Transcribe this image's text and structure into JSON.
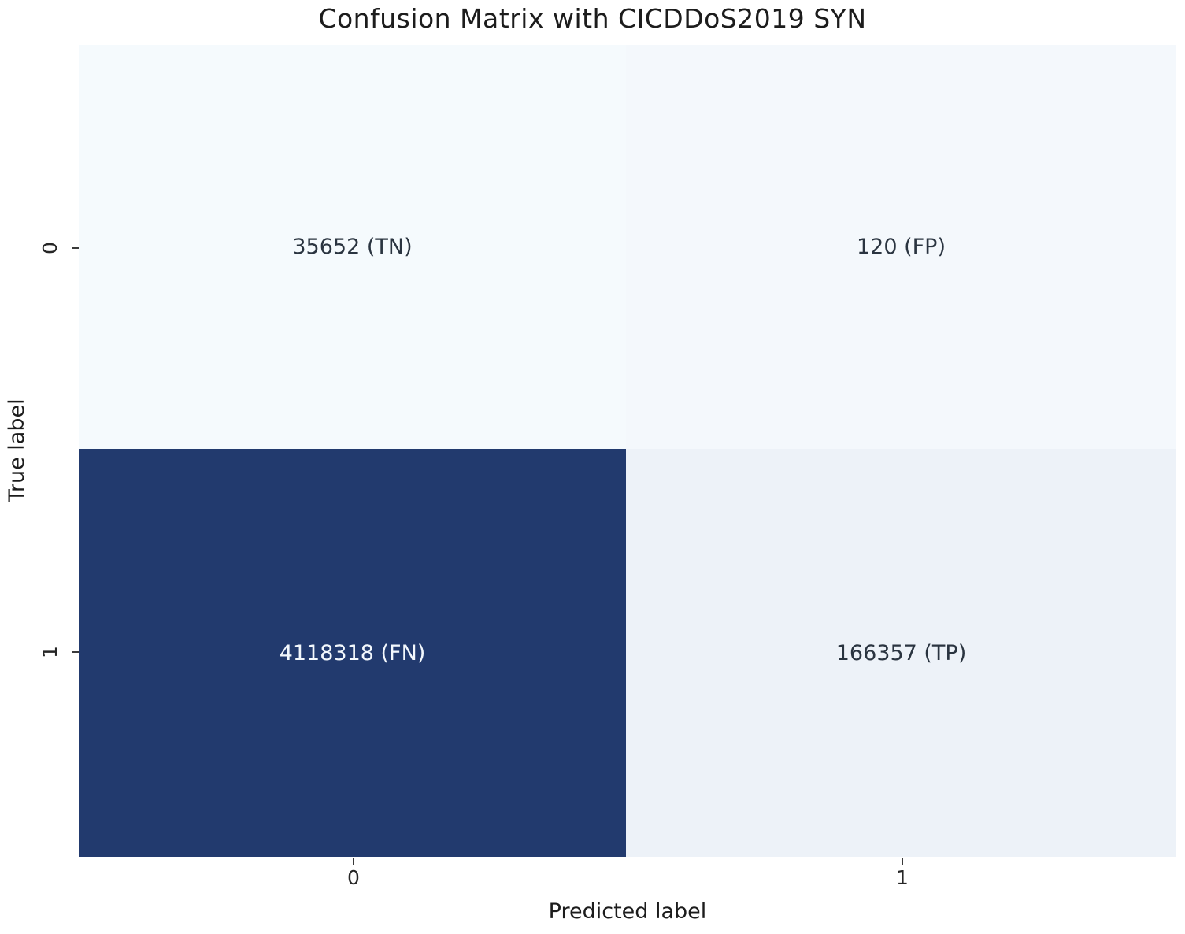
{
  "title": "Confusion Matrix with CICDDoS2019 SYN",
  "chart_data": {
    "type": "heatmap",
    "title": "Confusion Matrix with CICDDoS2019 SYN",
    "xlabel": "Predicted label",
    "ylabel": "True label",
    "x_tick_labels": [
      "0",
      "1"
    ],
    "y_tick_labels": [
      "0",
      "1"
    ],
    "row_categories": [
      "0",
      "1"
    ],
    "col_categories": [
      "0",
      "1"
    ],
    "matrix": [
      [
        35652,
        120
      ],
      [
        4118318,
        166357
      ]
    ],
    "colormap": "Blues",
    "value_min": 0,
    "value_max": 4118318,
    "grid": false,
    "legend_position": "none",
    "cells": [
      {
        "row": "0",
        "col": "0",
        "kind": "TN",
        "value": 35652,
        "label": "35652 (TN)",
        "bg": "#f5fafd",
        "fg": "#2a3440"
      },
      {
        "row": "0",
        "col": "1",
        "kind": "FP",
        "value": 120,
        "label": "120 (FP)",
        "bg": "#f4f8fc",
        "fg": "#2a3440"
      },
      {
        "row": "1",
        "col": "0",
        "kind": "FN",
        "value": 4118318,
        "label": "4118318 (FN)",
        "bg": "#223a6e",
        "fg": "#f3f8fd"
      },
      {
        "row": "1",
        "col": "1",
        "kind": "TP",
        "value": 166357,
        "label": "166357 (TP)",
        "bg": "#edf2f8",
        "fg": "#2a3440"
      }
    ]
  }
}
